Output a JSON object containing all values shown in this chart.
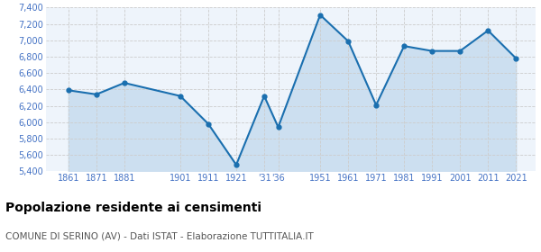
{
  "years": [
    1861,
    1871,
    1881,
    1901,
    1911,
    1921,
    1931,
    1936,
    1951,
    1961,
    1971,
    1981,
    1991,
    2001,
    2011,
    2021
  ],
  "population": [
    6390,
    6340,
    6480,
    6320,
    5980,
    5480,
    6320,
    5940,
    7310,
    6990,
    6210,
    6930,
    6870,
    6870,
    7120,
    6780
  ],
  "line_color": "#1a6faf",
  "fill_color": "#ccdff0",
  "marker_color": "#1a6faf",
  "grid_color": "#cccccc",
  "background_color": "#eef4fb",
  "title": "Popolazione residente ai censimenti",
  "subtitle": "COMUNE DI SERINO (AV) - Dati ISTAT - Elaborazione TUTTITALIA.IT",
  "ylim": [
    5400,
    7400
  ],
  "yticks": [
    5400,
    5600,
    5800,
    6000,
    6200,
    6400,
    6600,
    6800,
    7000,
    7200,
    7400
  ],
  "title_fontsize": 10,
  "subtitle_fontsize": 7.5,
  "axis_label_color": "#4472c4",
  "axis_tick_fontsize": 7,
  "xlim_left": 1853,
  "xlim_right": 2028
}
